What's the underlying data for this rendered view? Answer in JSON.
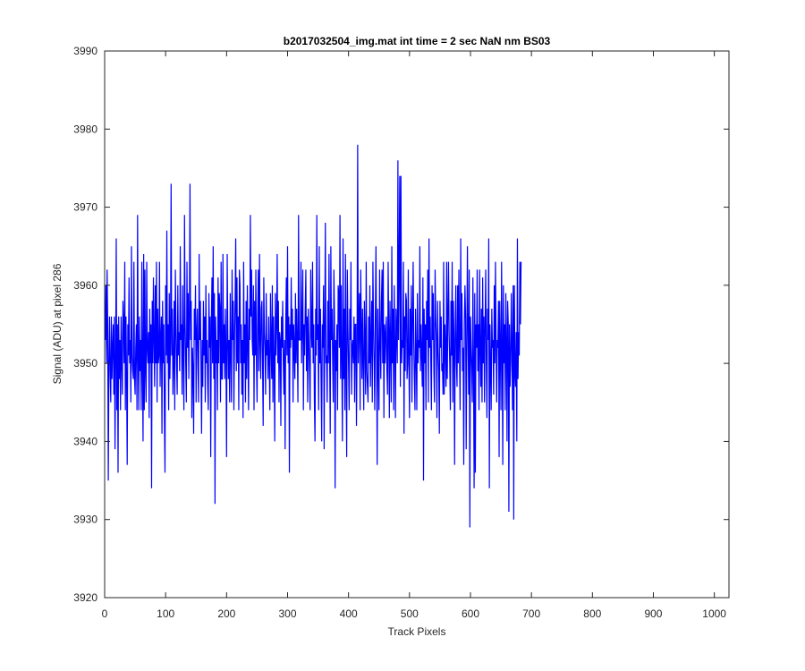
{
  "chart_data": {
    "type": "line",
    "title": "b2017032504_img.mat int time = 2 sec  NaN nm BS03",
    "xlabel": "Track Pixels",
    "ylabel": "Signal (ADU) at pixel 286",
    "xlim": [
      0,
      1024
    ],
    "ylim": [
      3920,
      3990
    ],
    "xticks": [
      0,
      100,
      200,
      300,
      400,
      500,
      600,
      700,
      800,
      900,
      1000
    ],
    "yticks": [
      3920,
      3930,
      3940,
      3950,
      3960,
      3970,
      3980,
      3990
    ],
    "grid": false,
    "legend": "none",
    "series": [
      {
        "color": "#0000ff",
        "x_start": 1,
        "x_step": 1,
        "values": [
          3953,
          3960,
          3950,
          3962,
          3955,
          3935,
          3950,
          3956,
          3949,
          3945,
          3956,
          3948,
          3952,
          3955,
          3946,
          3956,
          3939,
          3950,
          3966,
          3944,
          3955,
          3936,
          3956,
          3948,
          3953,
          3944,
          3956,
          3950,
          3946,
          3958,
          3955,
          3950,
          3963,
          3944,
          3956,
          3948,
          3937,
          3955,
          3951,
          3961,
          3950,
          3953,
          3945,
          3965,
          3951,
          3949,
          3948,
          3963,
          3948,
          3946,
          3952,
          3955,
          3944,
          3969,
          3951,
          3944,
          3956,
          3949,
          3953,
          3944,
          3963,
          3950,
          3940,
          3964,
          3944,
          3962,
          3949,
          3945,
          3963,
          3952,
          3950,
          3954,
          3943,
          3957,
          3950,
          3955,
          3934,
          3958,
          3950,
          3961,
          3953,
          3947,
          3960,
          3950,
          3963,
          3945,
          3957,
          3950,
          3951,
          3963,
          3947,
          3953,
          3956,
          3941,
          3958,
          3950,
          3955,
          3943,
          3936,
          3960,
          3951,
          3967,
          3950,
          3955,
          3944,
          3959,
          3948,
          3953,
          3973,
          3951,
          3957,
          3946,
          3950,
          3958,
          3944,
          3962,
          3955,
          3950,
          3946,
          3960,
          3951,
          3954,
          3949,
          3965,
          3953,
          3955,
          3946,
          3960,
          3951,
          3944,
          3969,
          3955,
          3950,
          3945,
          3963,
          3952,
          3959,
          3948,
          3956,
          3973,
          3953,
          3958,
          3943,
          3952,
          3949,
          3941,
          3957,
          3953,
          3960,
          3945,
          3954,
          3957,
          3950,
          3945,
          3964,
          3953,
          3958,
          3950,
          3941,
          3953,
          3947,
          3958,
          3951,
          3956,
          3945,
          3960,
          3950,
          3953,
          3947,
          3944,
          3959,
          3952,
          3956,
          3938,
          3955,
          3961,
          3950,
          3965,
          3948,
          3959,
          3932,
          3956,
          3950,
          3953,
          3944,
          3961,
          3950,
          3959,
          3957,
          3945,
          3963,
          3948,
          3948,
          3964,
          3950,
          3955,
          3948,
          3957,
          3951,
          3938,
          3964,
          3954,
          3948,
          3953,
          3945,
          3959,
          3951,
          3945,
          3962,
          3953,
          3958,
          3944,
          3953,
          3958,
          3966,
          3949,
          3961,
          3950,
          3956,
          3944,
          3962,
          3960,
          3950,
          3955,
          3946,
          3953,
          3943,
          3963,
          3950,
          3955,
          3945,
          3958,
          3948,
          3960,
          3952,
          3944,
          3957,
          3953,
          3969,
          3956,
          3962,
          3953,
          3951,
          3960,
          3944,
          3958,
          3951,
          3962,
          3950,
          3945,
          3956,
          3962,
          3949,
          3964,
          3953,
          3948,
          3957,
          3958,
          3950,
          3942,
          3961,
          3954,
          3952,
          3946,
          3959,
          3951,
          3953,
          3948,
          3956,
          3950,
          3944,
          3959,
          3953,
          3948,
          3960,
          3945,
          3956,
          3950,
          3940,
          3959,
          3951,
          3955,
          3964,
          3950,
          3958,
          3945,
          3954,
          3953,
          3942,
          3956,
          3952,
          3958,
          3950,
          3946,
          3953,
          3939,
          3955,
          3961,
          3951,
          3965,
          3950,
          3956,
          3936,
          3955,
          3952,
          3961,
          3953,
          3957,
          3945,
          3955,
          3952,
          3948,
          3959,
          3950,
          3957,
          3952,
          3945,
          3969,
          3953,
          3953,
          3953,
          3963,
          3950,
          3955,
          3962,
          3944,
          3955,
          3951,
          3957,
          3962,
          3949,
          3956,
          3945,
          3957,
          3953,
          3949,
          3944,
          3962,
          3954,
          3952,
          3963,
          3950,
          3955,
          3945,
          3940,
          3957,
          3951,
          3969,
          3953,
          3955,
          3944,
          3965,
          3950,
          3957,
          3948,
          3940,
          3955,
          3952,
          3960,
          3939,
          3955,
          3968,
          3950,
          3951,
          3945,
          3958,
          3950,
          3964,
          3951,
          3941,
          3965,
          3953,
          3957,
          3950,
          3945,
          3962,
          3956,
          3934,
          3953,
          3949,
          3955,
          3944,
          3960,
          3959,
          3952,
          3969,
          3948,
          3960,
          3950,
          3940,
          3966,
          3948,
          3957,
          3944,
          3964,
          3949,
          3938,
          3962,
          3955,
          3950,
          3944,
          3957,
          3953,
          3963,
          3946,
          3952,
          3953,
          3950,
          3956,
          3945,
          3955,
          3955,
          3942,
          3952,
          3978,
          3950,
          3955,
          3959,
          3944,
          3962,
          3955,
          3948,
          3957,
          3950,
          3944,
          3958,
          3953,
          3946,
          3963,
          3949,
          3947,
          3945,
          3956,
          3950,
          3960,
          3947,
          3953,
          3958,
          3945,
          3963,
          3955,
          3950,
          3944,
          3956,
          3965,
          3952,
          3937,
          3957,
          3950,
          3944,
          3962,
          3953,
          3948,
          3958,
          3962,
          3950,
          3963,
          3943,
          3955,
          3950,
          3954,
          3956,
          3949,
          3946,
          3963,
          3954,
          3943,
          3958,
          3952,
          3945,
          3965,
          3950,
          3957,
          3944,
          3960,
          3952,
          3943,
          3957,
          3954,
          3950,
          3976,
          3953,
          3962,
          3974,
          3947,
          3974,
          3950,
          3953,
          3952,
          3963,
          3941,
          3956,
          3949,
          3959,
          3958,
          3948,
          3950,
          3962,
          3950,
          3943,
          3957,
          3951,
          3960,
          3945,
          3955,
          3963,
          3953,
          3948,
          3944,
          3957,
          3951,
          3944,
          3959,
          3950,
          3953,
          3952,
          3965,
          3949,
          3955,
          3951,
          3947,
          3961,
          3935,
          3957,
          3950,
          3955,
          3944,
          3958,
          3953,
          3962,
          3945,
          3966,
          3952,
          3956,
          3950,
          3944,
          3960,
          3953,
          3959,
          3949,
          3945,
          3962,
          3956,
          3953,
          3943,
          3958,
          3952,
          3949,
          3941,
          3958,
          3952,
          3956,
          3949,
          3950,
          3946,
          3963,
          3946,
          3955,
          3952,
          3947,
          3963,
          3948,
          3956,
          3963,
          3954,
          3950,
          3944,
          3958,
          3951,
          3963,
          3945,
          3958,
          3953,
          3937,
          3954,
          3960,
          3950,
          3947,
          3960,
          3950,
          3962,
          3952,
          3944,
          3966,
          3953,
          3959,
          3949,
          3952,
          3937,
          3955,
          3960,
          3956,
          3939,
          3952,
          3965,
          3954,
          3946,
          3962,
          3929,
          3956,
          3952,
          3949,
          3945,
          3961,
          3950,
          3934,
          3959,
          3936,
          3955,
          3952,
          3962,
          3949,
          3955,
          3944,
          3962,
          3952,
          3947,
          3957,
          3945,
          3961,
          3950,
          3956,
          3945,
          3955,
          3962,
          3950,
          3943,
          3957,
          3953,
          3966,
          3934,
          3955,
          3950,
          3944,
          3957,
          3952,
          3953,
          3946,
          3960,
          3950,
          3963,
          3953,
          3945,
          3953,
          3952,
          3958,
          3938,
          3958,
          3952,
          3944,
          3963,
          3952,
          3937,
          3960,
          3950,
          3955,
          3944,
          3959,
          3953,
          3940,
          3958,
          3955,
          3931,
          3955,
          3947,
          3950,
          3959,
          3952,
          3944,
          3960,
          3930,
          3960,
          3949,
          3947,
          3954,
          3940,
          3966,
          3948,
          3954,
          3951,
          3963,
          3955,
          3963
        ]
      }
    ]
  }
}
